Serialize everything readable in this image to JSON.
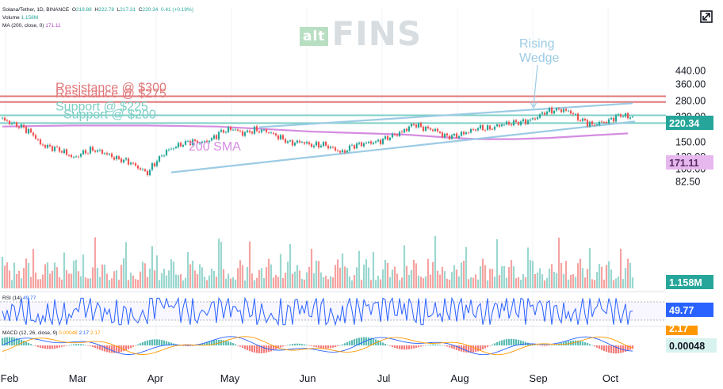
{
  "header": {
    "symbol_line": "Solana/Tether, 1D, BINANCE",
    "ohlc": {
      "o_label": "O",
      "o": "219.88",
      "h_label": "H",
      "h": "222.78",
      "l_label": "L",
      "l": "217.31",
      "c_label": "C",
      "c": "220.34",
      "chg": "0.41 (+0.19%)"
    },
    "volume_label": "Volume",
    "volume_value": "1.158M",
    "ma_label": "MA (200, close, 0)",
    "ma_value": "171.11",
    "rsi_label": "RSI (14)",
    "rsi_value": "49.77",
    "macd_label": "MACD (12, 26, close, 9)",
    "macd_values": [
      "0.00048",
      "2.17",
      "2.17"
    ]
  },
  "watermark": {
    "alt": "alt",
    "text": "FINS"
  },
  "annotations": {
    "rising_wedge": [
      "Rising",
      "Wedge"
    ],
    "resistance_300": "Resistance @ $300",
    "resistance_275": "Resistance @ $275",
    "support_225": "Support @ $225",
    "support_200": "Support @ $200",
    "sma_label": "200 SMA"
  },
  "colors": {
    "up": "#26a69a",
    "down": "#ef5350",
    "vol_up": "#9ad7cf",
    "vol_down": "#f5a3a1",
    "resistance": "#e0787a",
    "support": "#7ecfc6",
    "wedge": "#9ccbe4",
    "sma": "#d58de0",
    "rsi": "#2962ff",
    "macd": "#2962ff",
    "signal": "#ff9800"
  },
  "chart_data": {
    "type": "candlestick",
    "pair": "SOL/USDT",
    "interval": "1D",
    "exchange": "BINANCE",
    "price_axis": {
      "scale": "log",
      "ticks": [
        "440.00",
        "360.00",
        "280.00",
        "220.00",
        "190.00",
        "150.00",
        "120.00",
        "100.00",
        "82.50"
      ]
    },
    "x_ticks": [
      "Feb",
      "Mar",
      "Apr",
      "May",
      "Jun",
      "Jul",
      "Aug",
      "Sep",
      "Oct"
    ],
    "close_path": [
      [
        0,
        212
      ],
      [
        5,
        196
      ],
      [
        9,
        186
      ],
      [
        13,
        168
      ],
      [
        16,
        145
      ],
      [
        19,
        140
      ],
      [
        23,
        136
      ],
      [
        27,
        126
      ],
      [
        30,
        118
      ],
      [
        34,
        128
      ],
      [
        38,
        134
      ],
      [
        42,
        129
      ],
      [
        48,
        117
      ],
      [
        53,
        112
      ],
      [
        58,
        100
      ],
      [
        61,
        94
      ],
      [
        64,
        109
      ],
      [
        69,
        131
      ],
      [
        74,
        143
      ],
      [
        79,
        152
      ],
      [
        84,
        149
      ],
      [
        88,
        157
      ],
      [
        92,
        176
      ],
      [
        97,
        184
      ],
      [
        101,
        171
      ],
      [
        106,
        180
      ],
      [
        111,
        177
      ],
      [
        116,
        163
      ],
      [
        121,
        148
      ],
      [
        126,
        151
      ],
      [
        130,
        143
      ],
      [
        135,
        145
      ],
      [
        140,
        134
      ],
      [
        143,
        128
      ],
      [
        147,
        142
      ],
      [
        153,
        148
      ],
      [
        158,
        151
      ],
      [
        163,
        163
      ],
      [
        168,
        175
      ],
      [
        173,
        197
      ],
      [
        177,
        186
      ],
      [
        182,
        180
      ],
      [
        186,
        164
      ],
      [
        191,
        165
      ],
      [
        196,
        176
      ],
      [
        200,
        186
      ],
      [
        205,
        184
      ],
      [
        210,
        196
      ],
      [
        215,
        201
      ],
      [
        220,
        205
      ],
      [
        224,
        215
      ],
      [
        228,
        236
      ],
      [
        231,
        242
      ],
      [
        235,
        245
      ],
      [
        239,
        237
      ],
      [
        242,
        214
      ],
      [
        245,
        205
      ],
      [
        248,
        194
      ],
      [
        251,
        201
      ],
      [
        255,
        207
      ],
      [
        258,
        221
      ],
      [
        261,
        227
      ],
      [
        263,
        218
      ],
      [
        265,
        220.34
      ]
    ],
    "last_close": "220.34",
    "sma_200_last": "171.11",
    "volume_last": "1.158M",
    "rsi_last": "49.77",
    "macd_last": "0.00048",
    "signal_last": "2.17",
    "levels": [
      {
        "name": "Resistance @ $300",
        "price": 300
      },
      {
        "name": "Resistance @ $275",
        "price": 275
      },
      {
        "name": "Support @ $225",
        "price": 225
      },
      {
        "name": "Support @ $200",
        "price": 200
      }
    ],
    "pattern": "Rising Wedge"
  }
}
